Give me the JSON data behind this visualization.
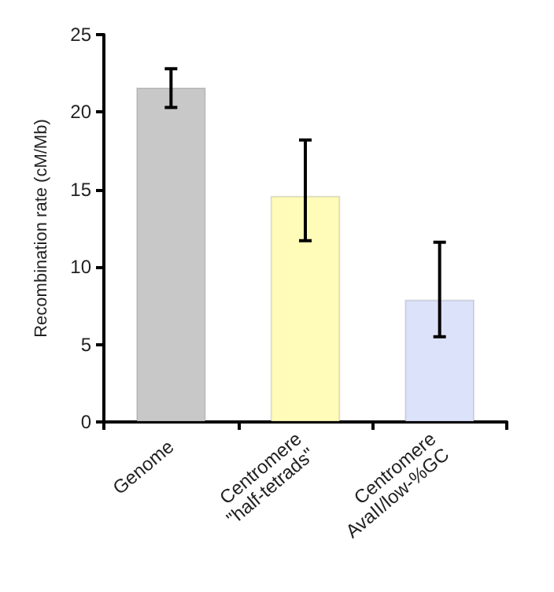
{
  "chart_data": {
    "type": "bar",
    "ylabel": "Recombination rate (cM/Mb)",
    "categories": [
      "Genome",
      "Centromere\n\"half-tetrads\"",
      "Centromere\nAvaII/low-%GC"
    ],
    "values": [
      21.6,
      14.6,
      7.9
    ],
    "colors": [
      "#c8c8c8",
      "#fffbb8",
      "#dde2fb"
    ],
    "errors": [
      [
        20.3,
        22.8
      ],
      [
        11.7,
        18.2
      ],
      [
        5.5,
        11.6
      ]
    ],
    "ylim": [
      0,
      25
    ],
    "yticks": [
      0,
      5,
      10,
      15,
      20,
      25
    ],
    "grid": false
  }
}
